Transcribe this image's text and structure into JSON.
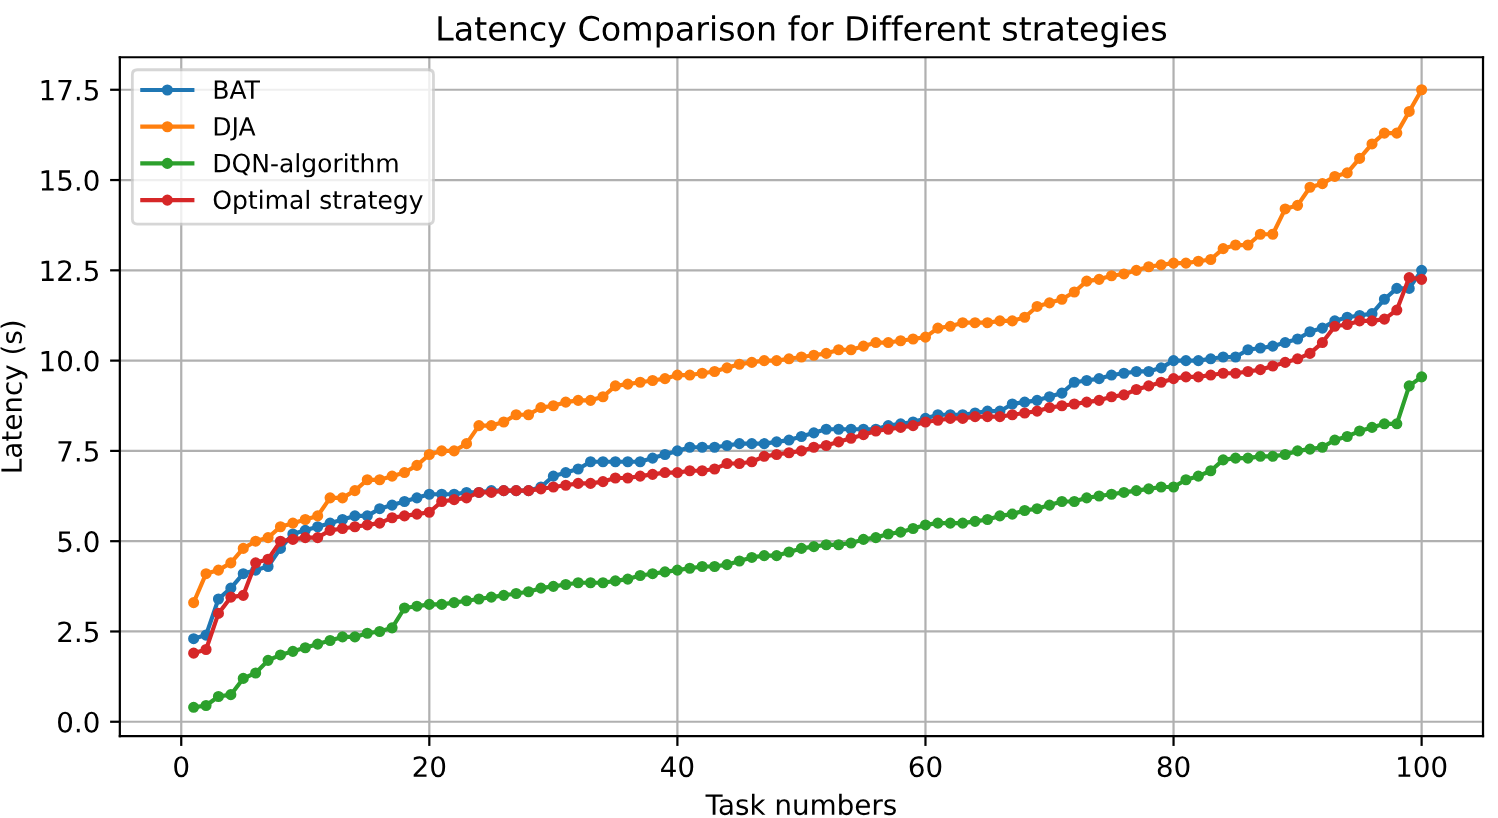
{
  "chart_data": {
    "type": "line",
    "title": "Latency Comparison for Different strategies",
    "xlabel": "Task numbers",
    "ylabel": "Latency (s)",
    "x": [
      1,
      2,
      3,
      4,
      5,
      6,
      7,
      8,
      9,
      10,
      11,
      12,
      13,
      14,
      15,
      16,
      17,
      18,
      19,
      20,
      21,
      22,
      23,
      24,
      25,
      26,
      27,
      28,
      29,
      30,
      31,
      32,
      33,
      34,
      35,
      36,
      37,
      38,
      39,
      40,
      41,
      42,
      43,
      44,
      45,
      46,
      47,
      48,
      49,
      50,
      51,
      52,
      53,
      54,
      55,
      56,
      57,
      58,
      59,
      60,
      61,
      62,
      63,
      64,
      65,
      66,
      67,
      68,
      69,
      70,
      71,
      72,
      73,
      74,
      75,
      76,
      77,
      78,
      79,
      80,
      81,
      82,
      83,
      84,
      85,
      86,
      87,
      88,
      89,
      90,
      91,
      92,
      93,
      94,
      95,
      96,
      97,
      98,
      99,
      100
    ],
    "series": [
      {
        "name": "BAT",
        "color": "#1f77b4",
        "values": [
          2.3,
          2.4,
          3.4,
          3.7,
          4.1,
          4.2,
          4.3,
          4.8,
          5.2,
          5.3,
          5.4,
          5.5,
          5.6,
          5.7,
          5.7,
          5.9,
          6.0,
          6.1,
          6.2,
          6.3,
          6.3,
          6.3,
          6.35,
          6.35,
          6.4,
          6.4,
          6.4,
          6.4,
          6.5,
          6.8,
          6.9,
          7.0,
          7.2,
          7.2,
          7.2,
          7.2,
          7.2,
          7.3,
          7.4,
          7.5,
          7.6,
          7.6,
          7.6,
          7.65,
          7.7,
          7.7,
          7.7,
          7.75,
          7.8,
          7.9,
          8.0,
          8.1,
          8.1,
          8.1,
          8.1,
          8.1,
          8.2,
          8.25,
          8.3,
          8.4,
          8.5,
          8.5,
          8.5,
          8.55,
          8.6,
          8.6,
          8.8,
          8.85,
          8.9,
          9.0,
          9.1,
          9.4,
          9.45,
          9.5,
          9.6,
          9.65,
          9.7,
          9.7,
          9.8,
          10.0,
          10.0,
          10.0,
          10.05,
          10.1,
          10.1,
          10.3,
          10.35,
          10.4,
          10.5,
          10.6,
          10.8,
          10.9,
          11.1,
          11.2,
          11.25,
          11.3,
          11.7,
          12.0,
          12.0,
          12.5
        ]
      },
      {
        "name": "DJA",
        "color": "#ff7f0e",
        "values": [
          3.3,
          4.1,
          4.2,
          4.4,
          4.8,
          5.0,
          5.1,
          5.4,
          5.5,
          5.6,
          5.7,
          6.2,
          6.2,
          6.4,
          6.7,
          6.7,
          6.8,
          6.9,
          7.1,
          7.4,
          7.5,
          7.5,
          7.7,
          8.2,
          8.2,
          8.3,
          8.5,
          8.5,
          8.7,
          8.75,
          8.85,
          8.9,
          8.9,
          9.0,
          9.3,
          9.35,
          9.4,
          9.45,
          9.5,
          9.6,
          9.6,
          9.65,
          9.7,
          9.8,
          9.9,
          9.95,
          10.0,
          10.0,
          10.05,
          10.1,
          10.15,
          10.2,
          10.3,
          10.3,
          10.4,
          10.5,
          10.5,
          10.55,
          10.6,
          10.65,
          10.9,
          10.95,
          11.05,
          11.05,
          11.05,
          11.1,
          11.1,
          11.2,
          11.5,
          11.6,
          11.7,
          11.9,
          12.2,
          12.25,
          12.35,
          12.4,
          12.5,
          12.6,
          12.65,
          12.7,
          12.7,
          12.75,
          12.8,
          13.1,
          13.2,
          13.2,
          13.5,
          13.5,
          14.2,
          14.3,
          14.8,
          14.9,
          15.1,
          15.2,
          15.6,
          16.0,
          16.3,
          16.3,
          16.9,
          17.5
        ]
      },
      {
        "name": "DQN-algorithm",
        "color": "#2ca02c",
        "values": [
          0.4,
          0.45,
          0.7,
          0.75,
          1.2,
          1.35,
          1.7,
          1.85,
          1.95,
          2.05,
          2.15,
          2.25,
          2.35,
          2.35,
          2.45,
          2.5,
          2.6,
          3.15,
          3.2,
          3.25,
          3.25,
          3.3,
          3.35,
          3.4,
          3.45,
          3.5,
          3.55,
          3.6,
          3.7,
          3.75,
          3.8,
          3.85,
          3.85,
          3.85,
          3.9,
          3.95,
          4.05,
          4.1,
          4.15,
          4.2,
          4.25,
          4.3,
          4.3,
          4.35,
          4.45,
          4.55,
          4.6,
          4.6,
          4.7,
          4.8,
          4.85,
          4.9,
          4.9,
          4.95,
          5.05,
          5.1,
          5.2,
          5.25,
          5.35,
          5.45,
          5.5,
          5.5,
          5.5,
          5.55,
          5.6,
          5.7,
          5.75,
          5.85,
          5.9,
          6.0,
          6.1,
          6.1,
          6.2,
          6.25,
          6.3,
          6.35,
          6.4,
          6.45,
          6.5,
          6.5,
          6.7,
          6.8,
          6.95,
          7.25,
          7.3,
          7.3,
          7.35,
          7.35,
          7.4,
          7.5,
          7.55,
          7.6,
          7.8,
          7.9,
          8.05,
          8.15,
          8.25,
          8.25,
          9.3,
          9.55
        ]
      },
      {
        "name": "Optimal strategy",
        "color": "#d62728",
        "values": [
          1.9,
          2.0,
          3.0,
          3.45,
          3.5,
          4.4,
          4.5,
          5.0,
          5.05,
          5.1,
          5.1,
          5.3,
          5.35,
          5.4,
          5.45,
          5.5,
          5.65,
          5.7,
          5.75,
          5.8,
          6.1,
          6.15,
          6.2,
          6.35,
          6.35,
          6.4,
          6.4,
          6.4,
          6.45,
          6.5,
          6.55,
          6.6,
          6.6,
          6.65,
          6.75,
          6.75,
          6.8,
          6.85,
          6.9,
          6.9,
          6.95,
          6.95,
          7.0,
          7.15,
          7.15,
          7.2,
          7.35,
          7.4,
          7.45,
          7.5,
          7.6,
          7.65,
          7.75,
          7.85,
          7.95,
          8.05,
          8.1,
          8.15,
          8.2,
          8.3,
          8.35,
          8.4,
          8.4,
          8.45,
          8.45,
          8.45,
          8.5,
          8.55,
          8.6,
          8.7,
          8.75,
          8.8,
          8.85,
          8.9,
          9.0,
          9.05,
          9.2,
          9.3,
          9.4,
          9.5,
          9.55,
          9.55,
          9.6,
          9.65,
          9.65,
          9.7,
          9.75,
          9.85,
          9.95,
          10.05,
          10.2,
          10.5,
          10.95,
          11.0,
          11.1,
          11.1,
          11.15,
          11.4,
          12.3,
          12.25
        ]
      }
    ],
    "xlim": [
      -4.95,
      104.95
    ],
    "ylim": [
      -0.4,
      18.4
    ],
    "xticks": [
      0,
      20,
      40,
      60,
      80,
      100
    ],
    "yticks": [
      {
        "value": 0,
        "label": "0.0"
      },
      2.5,
      {
        "value": 5,
        "label": "5.0"
      },
      7.5,
      {
        "value": 10,
        "label": "10.0"
      },
      12.5,
      {
        "value": 15,
        "label": "15.0"
      },
      17.5
    ],
    "grid": true,
    "legend": "top left",
    "marker": "circle",
    "line_style": "solid"
  }
}
